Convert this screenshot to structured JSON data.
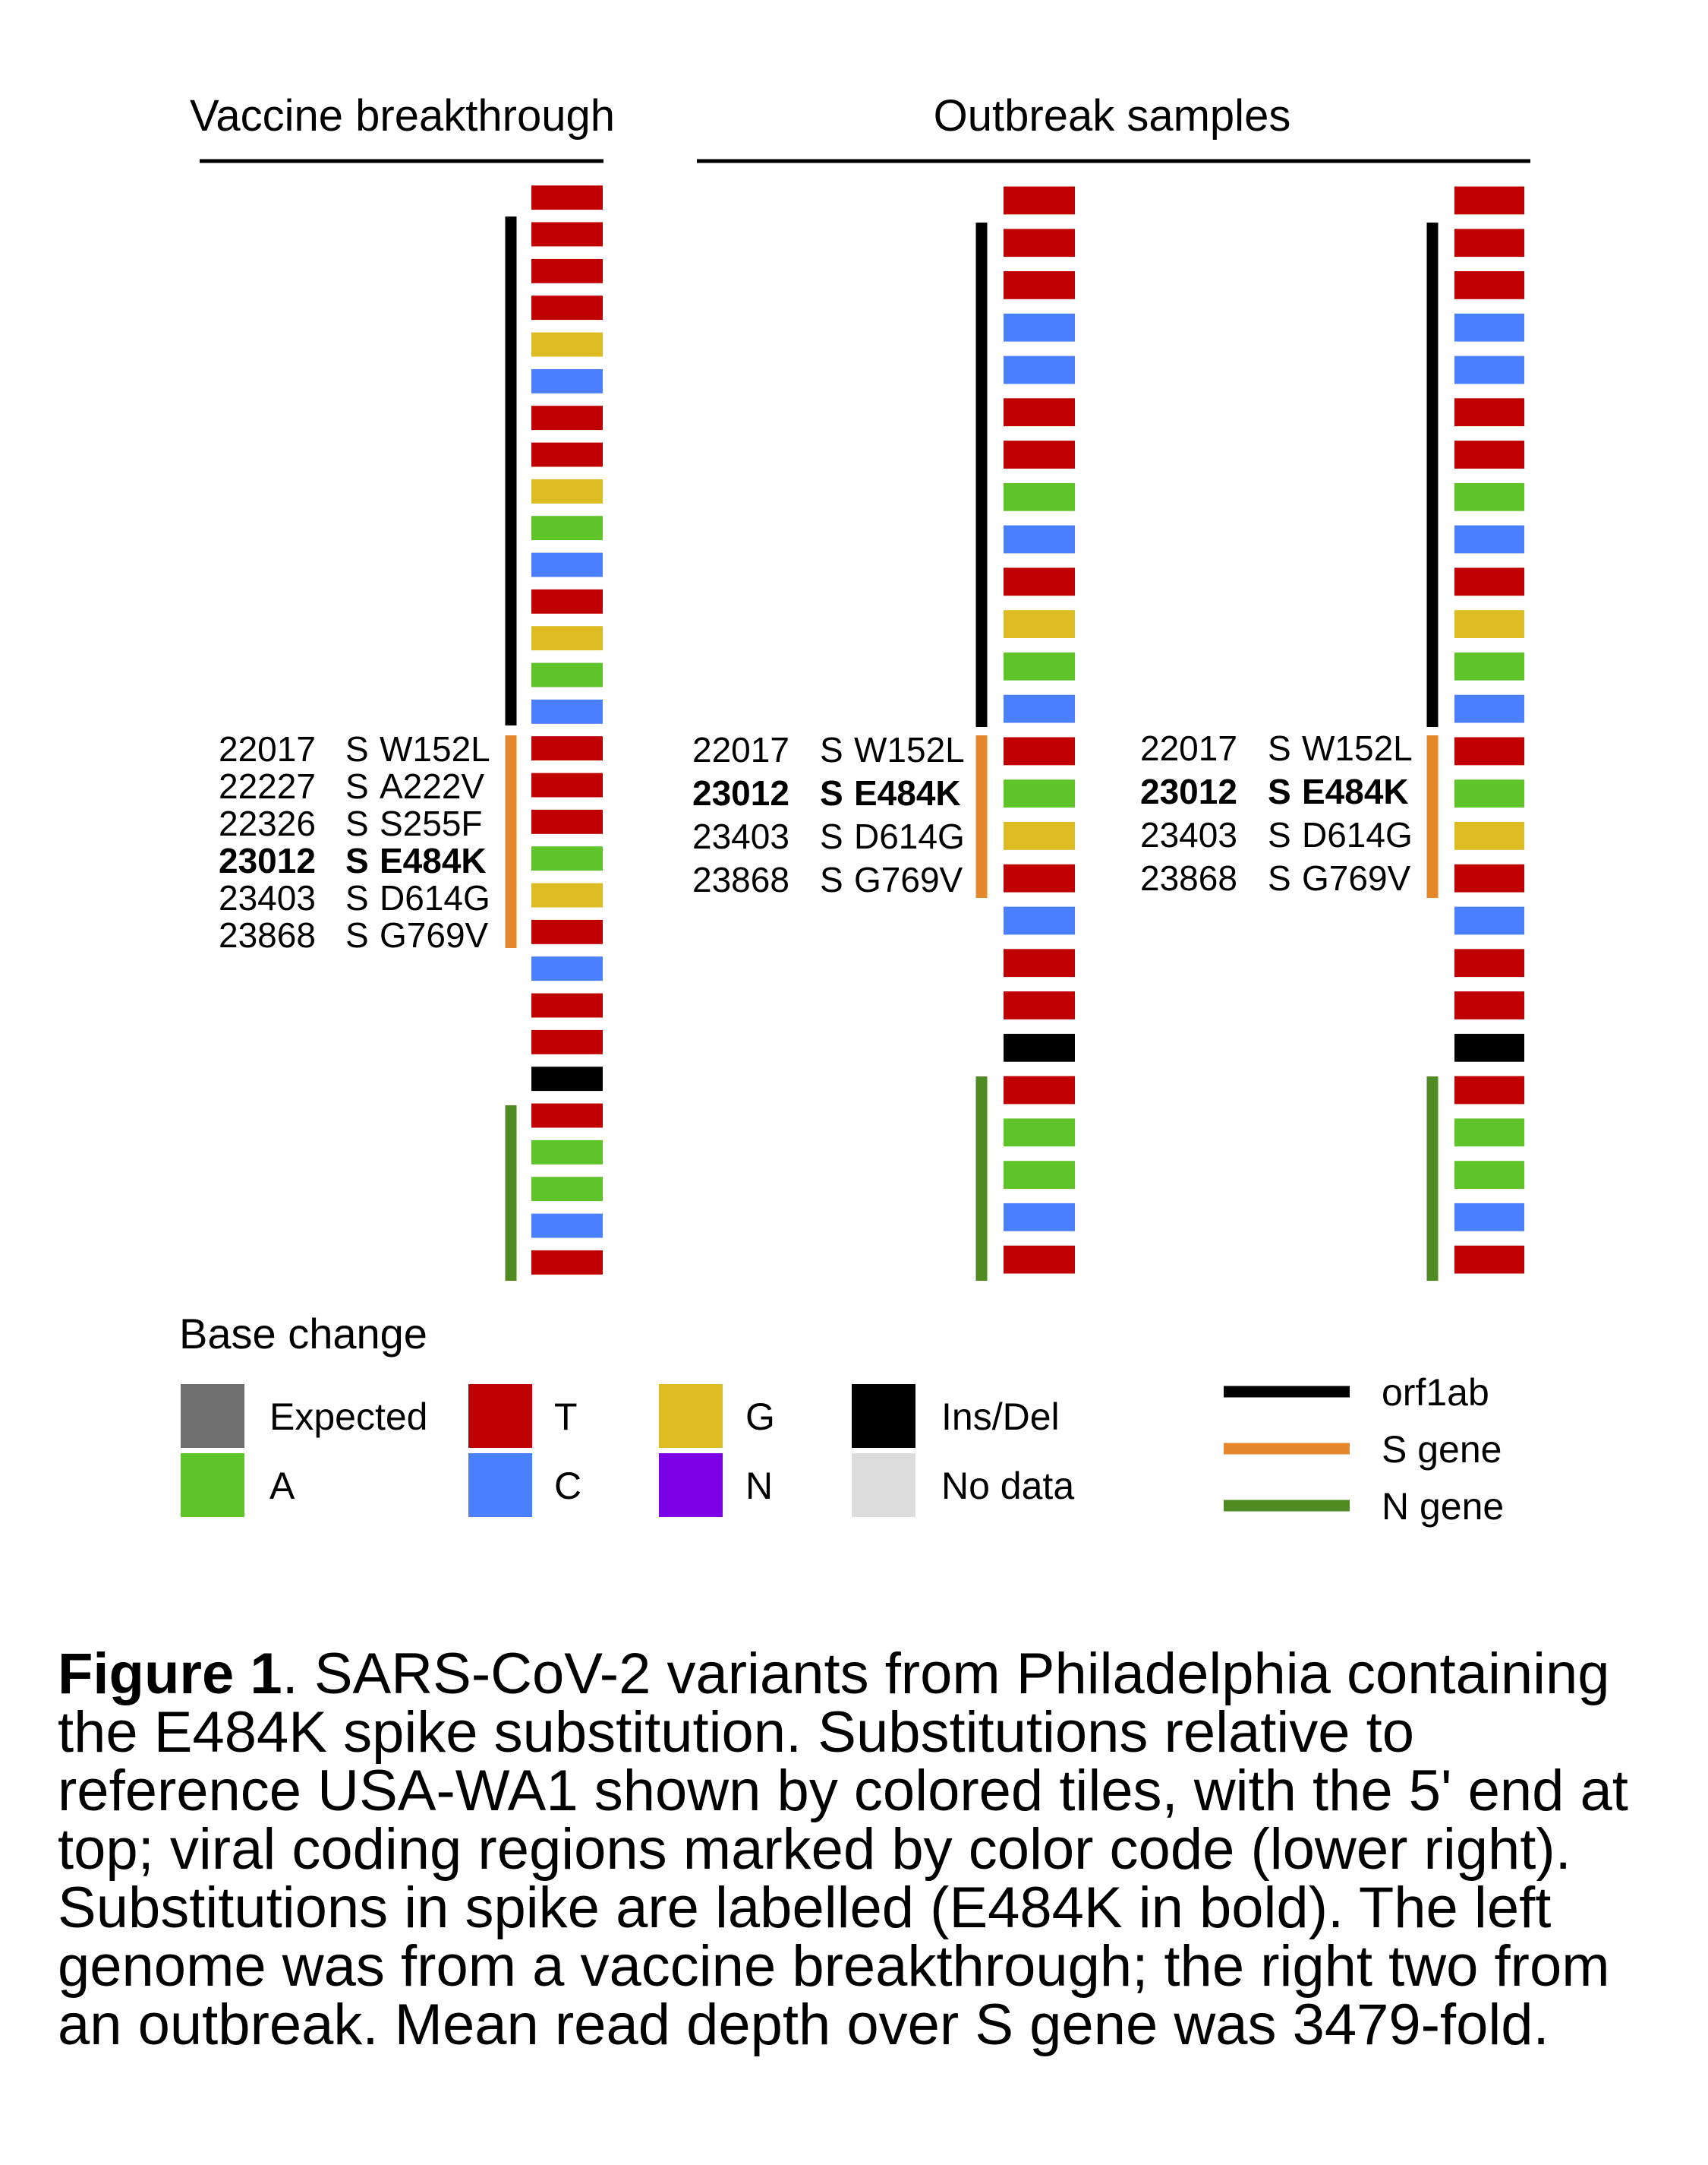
{
  "headings": {
    "left": "Vaccine breakthrough",
    "right": "Outbreak samples"
  },
  "colors": {
    "Expected": "#6e6e6e",
    "T": "#c00000",
    "G": "#dcbc22",
    "Ins/Del": "#000000",
    "A": "#5ec42a",
    "C": "#4a7fff",
    "N": "#7a00e6",
    "No data": "#dcdcdc",
    "orf1ab": "#000000",
    "S gene": "#e5882b",
    "N gene": "#4f8b22"
  },
  "genomes": [
    {
      "group": "Vaccine breakthrough",
      "tiles": [
        "T",
        "T",
        "T",
        "T",
        "G",
        "C",
        "T",
        "T",
        "G",
        "A",
        "C",
        "T",
        "G",
        "A",
        "C",
        "T",
        "T",
        "T",
        "A",
        "G",
        "T",
        "C",
        "T",
        "T",
        "Ins/Del",
        "T",
        "A",
        "A",
        "C",
        "T"
      ],
      "spike_labels": [
        {
          "pos": "22017",
          "gene": "S",
          "aa": "W152L",
          "bold": false
        },
        {
          "pos": "22227",
          "gene": "S",
          "aa": "A222V",
          "bold": false
        },
        {
          "pos": "22326",
          "gene": "S",
          "aa": "S255F",
          "bold": false
        },
        {
          "pos": "23012",
          "gene": "S",
          "aa": "E484K",
          "bold": true
        },
        {
          "pos": "23403",
          "gene": "S",
          "aa": "D614G",
          "bold": false
        },
        {
          "pos": "23868",
          "gene": "S",
          "aa": "G769V",
          "bold": false
        }
      ]
    },
    {
      "group": "Outbreak samples",
      "tiles": [
        "T",
        "T",
        "T",
        "C",
        "C",
        "T",
        "T",
        "A",
        "C",
        "T",
        "G",
        "A",
        "C",
        "T",
        "A",
        "G",
        "T",
        "C",
        "T",
        "T",
        "Ins/Del",
        "T",
        "A",
        "A",
        "C",
        "T"
      ],
      "spike_labels": [
        {
          "pos": "22017",
          "gene": "S",
          "aa": "W152L",
          "bold": false
        },
        {
          "pos": "23012",
          "gene": "S",
          "aa": "E484K",
          "bold": true
        },
        {
          "pos": "23403",
          "gene": "S",
          "aa": "D614G",
          "bold": false
        },
        {
          "pos": "23868",
          "gene": "S",
          "aa": "G769V",
          "bold": false
        }
      ]
    },
    {
      "group": "Outbreak samples",
      "tiles": [
        "T",
        "T",
        "T",
        "C",
        "C",
        "T",
        "T",
        "A",
        "C",
        "T",
        "G",
        "A",
        "C",
        "T",
        "A",
        "G",
        "T",
        "C",
        "T",
        "T",
        "Ins/Del",
        "T",
        "A",
        "A",
        "C",
        "T"
      ],
      "spike_labels": [
        {
          "pos": "22017",
          "gene": "S",
          "aa": "W152L",
          "bold": false
        },
        {
          "pos": "23012",
          "gene": "S",
          "aa": "E484K",
          "bold": true
        },
        {
          "pos": "23403",
          "gene": "S",
          "aa": "D614G",
          "bold": false
        },
        {
          "pos": "23868",
          "gene": "S",
          "aa": "G769V",
          "bold": false
        }
      ]
    }
  ],
  "legend": {
    "title": "Base change",
    "items": [
      "Expected",
      "T",
      "G",
      "Ins/Del",
      "A",
      "C",
      "N",
      "No data"
    ],
    "regions": [
      "orf1ab",
      "S gene",
      "N gene"
    ]
  },
  "caption": {
    "label": "Figure 1",
    "text": ". SARS-CoV-2 variants from Philadelphia containing the E484K spike substitution. Substitutions relative to reference USA-WA1 shown by colored tiles, with the 5' end at top; viral coding regions marked by color code (lower right). Substitutions in spike are labelled (E484K in bold). The left genome was from a vaccine breakthrough; the right two from an outbreak. Mean read depth over S gene was 3479-fold."
  }
}
